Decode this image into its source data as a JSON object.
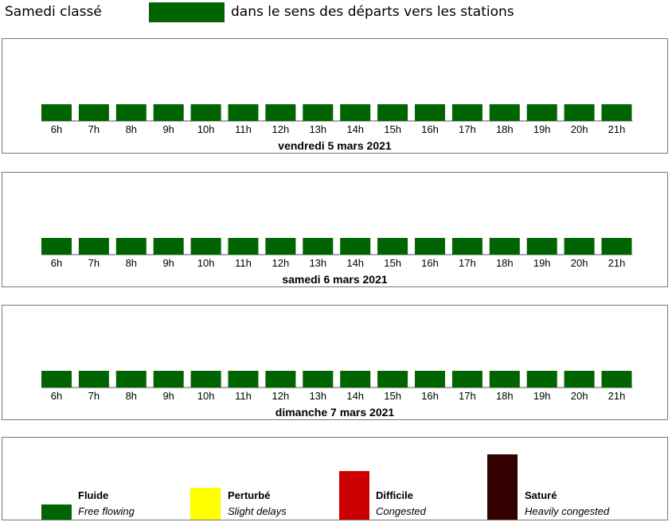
{
  "header": {
    "title": "Samedi classé",
    "description": "dans le sens des départs vers les stations",
    "swatch_color": "#006400"
  },
  "chart_data": [
    {
      "type": "bar",
      "title": "vendredi 5 mars 2021",
      "categories": [
        "6h",
        "7h",
        "8h",
        "9h",
        "10h",
        "11h",
        "12h",
        "13h",
        "14h",
        "15h",
        "16h",
        "17h",
        "18h",
        "19h",
        "20h",
        "21h"
      ],
      "values": [
        1,
        1,
        1,
        1,
        1,
        1,
        1,
        1,
        1,
        1,
        1,
        1,
        1,
        1,
        1,
        1
      ],
      "levels": [
        "Fluide",
        "Fluide",
        "Fluide",
        "Fluide",
        "Fluide",
        "Fluide",
        "Fluide",
        "Fluide",
        "Fluide",
        "Fluide",
        "Fluide",
        "Fluide",
        "Fluide",
        "Fluide",
        "Fluide",
        "Fluide"
      ],
      "grid": false
    },
    {
      "type": "bar",
      "title": "samedi 6 mars 2021",
      "categories": [
        "6h",
        "7h",
        "8h",
        "9h",
        "10h",
        "11h",
        "12h",
        "13h",
        "14h",
        "15h",
        "16h",
        "17h",
        "18h",
        "19h",
        "20h",
        "21h"
      ],
      "values": [
        1,
        1,
        1,
        1,
        1,
        1,
        1,
        1,
        1,
        1,
        1,
        1,
        1,
        1,
        1,
        1
      ],
      "levels": [
        "Fluide",
        "Fluide",
        "Fluide",
        "Fluide",
        "Fluide",
        "Fluide",
        "Fluide",
        "Fluide",
        "Fluide",
        "Fluide",
        "Fluide",
        "Fluide",
        "Fluide",
        "Fluide",
        "Fluide",
        "Fluide"
      ],
      "grid": false
    },
    {
      "type": "bar",
      "title": "dimanche 7 mars 2021",
      "categories": [
        "6h",
        "7h",
        "8h",
        "9h",
        "10h",
        "11h",
        "12h",
        "13h",
        "14h",
        "15h",
        "16h",
        "17h",
        "18h",
        "19h",
        "20h",
        "21h"
      ],
      "values": [
        1,
        1,
        1,
        1,
        1,
        1,
        1,
        1,
        1,
        1,
        1,
        1,
        1,
        1,
        1,
        1
      ],
      "levels": [
        "Fluide",
        "Fluide",
        "Fluide",
        "Fluide",
        "Fluide",
        "Fluide",
        "Fluide",
        "Fluide",
        "Fluide",
        "Fluide",
        "Fluide",
        "Fluide",
        "Fluide",
        "Fluide",
        "Fluide",
        "Fluide"
      ],
      "grid": false
    }
  ],
  "legend": [
    {
      "name": "Fluide",
      "description": "Free flowing",
      "color": "#006400",
      "level": 1
    },
    {
      "name": "Perturbé",
      "description": "Slight delays",
      "color": "#ffff00",
      "level": 2
    },
    {
      "name": "Difficile",
      "description": "Congested",
      "color": "#cc0000",
      "level": 3
    },
    {
      "name": "Saturé",
      "description": "Heavily congested",
      "color": "#330000",
      "level": 4
    }
  ]
}
